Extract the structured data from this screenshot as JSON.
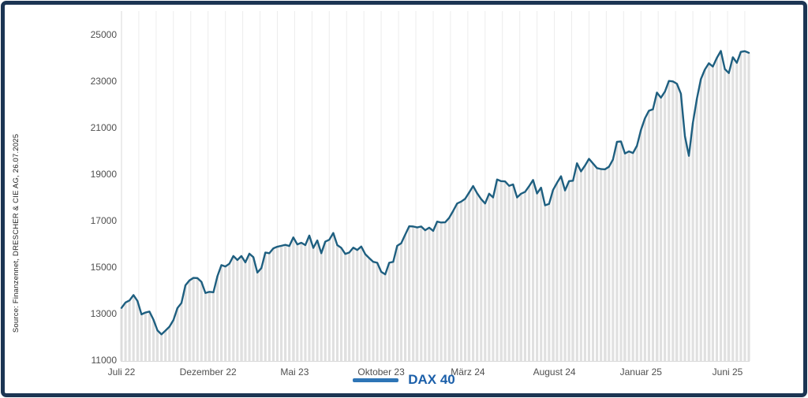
{
  "source_note": "Source: Finanzennet, DRESCHER & CIE AG, 26.07.2025",
  "legend": {
    "label": "DAX 40"
  },
  "colors": {
    "frame": "#1c3553",
    "line": "#1e5f80",
    "bars": "#e0e0e0",
    "grid": "#ececec",
    "axis": "#d9d9d9",
    "tick_text": "#4f4f4f",
    "legend_swatch": "#2e75b6",
    "legend_text": "#1b5fa9"
  },
  "chart_data": {
    "type": "line",
    "title": "",
    "xlabel": "",
    "ylabel": "",
    "granularity": "weekly",
    "x_range_label": "Juli 2022 - Juli 2025",
    "ylim": [
      11000,
      26000
    ],
    "y_ticks": [
      11000,
      13000,
      15000,
      17000,
      19000,
      21000,
      23000,
      25000
    ],
    "x_ticks": [
      {
        "label": "Juli 22",
        "month": 0
      },
      {
        "label": "Dezember 22",
        "month": 5
      },
      {
        "label": "Mai 23",
        "month": 10
      },
      {
        "label": "Oktober 23",
        "month": 15
      },
      {
        "label": "März 24",
        "month": 20
      },
      {
        "label": "August 24",
        "month": 25
      },
      {
        "label": "Januar 25",
        "month": 30
      },
      {
        "label": "Juni 25",
        "month": 35
      }
    ],
    "grid": "monthly-vertical",
    "fill_style": "vertical-bars-under-line",
    "legend_position": "bottom-center",
    "series": [
      {
        "name": "DAX 40",
        "values": [
          13250,
          13480,
          13570,
          13800,
          13545,
          12970,
          13050,
          13090,
          12740,
          12280,
          12110,
          12270,
          12440,
          12730,
          13240,
          13460,
          14220,
          14430,
          14540,
          14530,
          14370,
          13890,
          13940,
          13920,
          14610,
          15090,
          15030,
          15150,
          15480,
          15310,
          15480,
          15210,
          15580,
          15430,
          14770,
          14960,
          15630,
          15600,
          15810,
          15880,
          15920,
          15960,
          15910,
          16280,
          15980,
          16050,
          15950,
          16360,
          15830,
          16150,
          15600,
          16100,
          16180,
          16470,
          15950,
          15830,
          15570,
          15630,
          15840,
          15740,
          15890,
          15560,
          15390,
          15230,
          15190,
          14800,
          14690,
          15190,
          15230,
          15920,
          16030,
          16400,
          16760,
          16750,
          16710,
          16750,
          16590,
          16700,
          16560,
          16960,
          16920,
          16930,
          17120,
          17420,
          17740,
          17820,
          17940,
          18210,
          18490,
          18180,
          17930,
          17740,
          18160,
          18000,
          18770,
          18700,
          18690,
          18500,
          18560,
          18000,
          18160,
          18240,
          18480,
          18750,
          18170,
          18420,
          17660,
          17720,
          18320,
          18630,
          18910,
          18300,
          18700,
          18720,
          19470,
          19120,
          19370,
          19660,
          19460,
          19260,
          19220,
          19210,
          19320,
          19630,
          20390,
          20410,
          19890,
          19980,
          19910,
          20220,
          20900,
          21400,
          21730,
          21790,
          22510,
          22290,
          22550,
          23010,
          22990,
          22890,
          22460,
          20640,
          19790,
          21210,
          22240,
          23090,
          23500,
          23770,
          23630,
          24000,
          24300,
          23520,
          23350,
          24030,
          23790,
          24260,
          24290,
          24220
        ]
      }
    ]
  }
}
